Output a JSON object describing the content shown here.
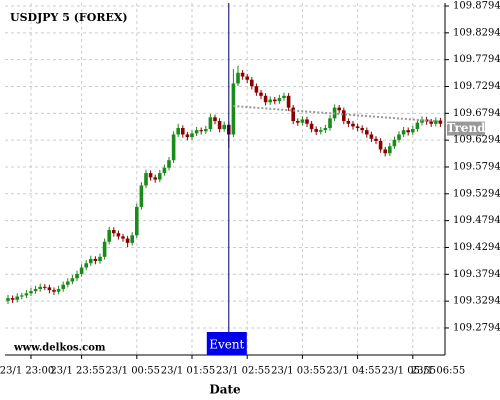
{
  "chart_data": {
    "type": "candlestick",
    "title": "USDJPY 5 (FOREX)",
    "watermark": "www.delkos.com",
    "x_label": "Date",
    "categories": [
      null,
      null,
      null,
      null,
      null,
      "23/1 23:00",
      null,
      null,
      null,
      null,
      null,
      null,
      null,
      null,
      null,
      null,
      "23/1 23:55",
      null,
      null,
      null,
      null,
      null,
      null,
      null,
      null,
      null,
      null,
      null,
      "23/1 00:55",
      null,
      null,
      null,
      null,
      null,
      null,
      null,
      null,
      null,
      null,
      null,
      "23/1 01:55",
      null,
      null,
      null,
      null,
      null,
      null,
      null,
      null,
      null,
      null,
      null,
      "23/1 02:55",
      null,
      null,
      null,
      null,
      null,
      null,
      null,
      null,
      null,
      null,
      null,
      "23/1 03:55",
      null,
      null,
      null,
      null,
      null,
      null,
      null,
      null,
      null,
      null,
      null,
      "23/1 04:55",
      null,
      null,
      null,
      null,
      null,
      null,
      null,
      null,
      null,
      null,
      null,
      "23/1 05:55",
      null,
      null,
      null,
      null,
      null,
      null,
      null,
      null,
      null,
      null,
      null,
      "23/1 06:55"
    ],
    "ohlc": [
      [
        109.33,
        109.341,
        109.324,
        109.335
      ],
      [
        109.335,
        109.34,
        109.326,
        109.332
      ],
      [
        109.332,
        109.344,
        109.327,
        109.338
      ],
      [
        109.338,
        109.345,
        109.333,
        109.34
      ],
      [
        109.34,
        109.35,
        109.335,
        109.344
      ],
      [
        109.344,
        109.354,
        109.339,
        109.348
      ],
      [
        109.348,
        109.358,
        109.343,
        109.352
      ],
      [
        109.352,
        109.362,
        109.347,
        109.356
      ],
      [
        109.356,
        109.361,
        109.35,
        109.355
      ],
      [
        109.355,
        109.36,
        109.344,
        109.35
      ],
      [
        109.35,
        109.355,
        109.341,
        109.347
      ],
      [
        109.347,
        109.358,
        109.342,
        109.352
      ],
      [
        109.352,
        109.366,
        109.347,
        109.36
      ],
      [
        109.36,
        109.372,
        109.355,
        109.366
      ],
      [
        109.366,
        109.378,
        109.361,
        109.372
      ],
      [
        109.372,
        109.386,
        109.367,
        109.38
      ],
      [
        109.38,
        109.398,
        109.375,
        109.392
      ],
      [
        109.392,
        109.406,
        109.387,
        109.4
      ],
      [
        109.4,
        109.414,
        109.395,
        109.408
      ],
      [
        109.408,
        109.413,
        109.398,
        109.404
      ],
      [
        109.404,
        109.418,
        109.399,
        109.412
      ],
      [
        109.412,
        109.446,
        109.407,
        109.44
      ],
      [
        109.44,
        109.468,
        109.435,
        109.462
      ],
      [
        109.462,
        109.467,
        109.45,
        109.456
      ],
      [
        109.456,
        109.461,
        109.444,
        109.45
      ],
      [
        109.45,
        109.455,
        109.44,
        109.446
      ],
      [
        109.446,
        109.451,
        109.43,
        109.438
      ],
      [
        109.438,
        109.458,
        109.433,
        109.452
      ],
      [
        109.452,
        109.511,
        109.447,
        109.505
      ],
      [
        109.505,
        109.551,
        109.5,
        109.545
      ],
      [
        109.545,
        109.574,
        109.54,
        109.568
      ],
      [
        109.568,
        109.573,
        109.554,
        109.56
      ],
      [
        109.56,
        109.565,
        109.55,
        109.556
      ],
      [
        109.556,
        109.574,
        109.551,
        109.568
      ],
      [
        109.568,
        109.584,
        109.563,
        109.578
      ],
      [
        109.578,
        109.598,
        109.573,
        109.592
      ],
      [
        109.592,
        109.646,
        109.587,
        109.64
      ],
      [
        109.64,
        109.66,
        109.635,
        109.652
      ],
      [
        109.652,
        109.657,
        109.634,
        109.64
      ],
      [
        109.64,
        109.645,
        109.629,
        109.635
      ],
      [
        109.635,
        109.648,
        109.63,
        109.642
      ],
      [
        109.642,
        109.654,
        109.637,
        109.648
      ],
      [
        109.648,
        109.653,
        109.64,
        109.646
      ],
      [
        109.646,
        109.656,
        109.641,
        109.65
      ],
      [
        109.65,
        109.678,
        109.645,
        109.672
      ],
      [
        109.672,
        109.677,
        109.659,
        109.665
      ],
      [
        109.665,
        109.67,
        109.644,
        109.65
      ],
      [
        109.65,
        109.664,
        109.645,
        109.658
      ],
      [
        109.658,
        109.663,
        109.615,
        109.64
      ],
      [
        109.64,
        109.762,
        109.635,
        109.735
      ],
      [
        109.735,
        109.768,
        109.73,
        109.755
      ],
      [
        109.755,
        109.76,
        109.742,
        109.748
      ],
      [
        109.748,
        109.753,
        109.736,
        109.742
      ],
      [
        109.742,
        109.747,
        109.724,
        109.73
      ],
      [
        109.73,
        109.735,
        109.712,
        109.718
      ],
      [
        109.718,
        109.723,
        109.706,
        109.712
      ],
      [
        109.712,
        109.717,
        109.694,
        109.7
      ],
      [
        109.7,
        109.711,
        109.695,
        109.705
      ],
      [
        109.705,
        109.71,
        109.696,
        109.702
      ],
      [
        109.702,
        109.714,
        109.697,
        109.708
      ],
      [
        109.708,
        109.718,
        109.703,
        109.712
      ],
      [
        109.712,
        109.717,
        109.684,
        109.69
      ],
      [
        109.69,
        109.695,
        109.659,
        109.665
      ],
      [
        109.665,
        109.67,
        109.656,
        109.662
      ],
      [
        109.662,
        109.674,
        109.657,
        109.668
      ],
      [
        109.668,
        109.673,
        109.654,
        109.66
      ],
      [
        109.66,
        109.665,
        109.644,
        109.65
      ],
      [
        109.65,
        109.655,
        109.639,
        109.645
      ],
      [
        109.645,
        109.654,
        109.64,
        109.648
      ],
      [
        109.648,
        109.658,
        109.643,
        109.652
      ],
      [
        109.652,
        109.676,
        109.647,
        109.67
      ],
      [
        109.67,
        109.696,
        109.665,
        109.69
      ],
      [
        109.69,
        109.695,
        109.679,
        109.685
      ],
      [
        109.685,
        109.69,
        109.659,
        109.665
      ],
      [
        109.665,
        109.67,
        109.654,
        109.66
      ],
      [
        109.66,
        109.665,
        109.649,
        109.655
      ],
      [
        109.655,
        109.66,
        109.646,
        109.652
      ],
      [
        109.652,
        109.657,
        109.642,
        109.648
      ],
      [
        109.648,
        109.653,
        109.634,
        109.64
      ],
      [
        109.64,
        109.645,
        109.626,
        109.632
      ],
      [
        109.632,
        109.637,
        109.622,
        109.628
      ],
      [
        109.628,
        109.633,
        109.606,
        109.612
      ],
      [
        109.612,
        109.617,
        109.599,
        109.605
      ],
      [
        109.605,
        109.624,
        109.6,
        109.618
      ],
      [
        109.618,
        109.636,
        109.613,
        109.63
      ],
      [
        109.63,
        109.646,
        109.625,
        109.64
      ],
      [
        109.64,
        109.654,
        109.635,
        109.648
      ],
      [
        109.648,
        109.653,
        109.638,
        109.644
      ],
      [
        109.644,
        109.656,
        109.639,
        109.65
      ],
      [
        109.65,
        109.668,
        109.645,
        109.662
      ],
      [
        109.662,
        109.674,
        109.657,
        109.668
      ],
      [
        109.668,
        109.673,
        109.658,
        109.664
      ],
      [
        109.664,
        109.669,
        109.654,
        109.66
      ],
      [
        109.66,
        109.672,
        109.655,
        109.666
      ],
      [
        109.666,
        109.671,
        109.654,
        109.66
      ],
      null,
      null,
      null,
      null,
      null,
      null
    ],
    "up_color": "#1a8a1a",
    "down_color": "#8b0000",
    "ylim": [
      109.229,
      109.885
    ],
    "yticks": [
      109.8794,
      109.8294,
      109.7794,
      109.7294,
      109.6794,
      109.6294,
      109.5794,
      109.5294,
      109.4794,
      109.4294,
      109.3794,
      109.3294,
      109.2794
    ],
    "grid": true,
    "event": {
      "label": "Event",
      "at": 48,
      "color": "#0000ee"
    },
    "trend": {
      "label": "Trend",
      "x": [
        49,
        94
      ],
      "values": [
        109.693,
        109.664
      ],
      "color": "#999999"
    }
  }
}
